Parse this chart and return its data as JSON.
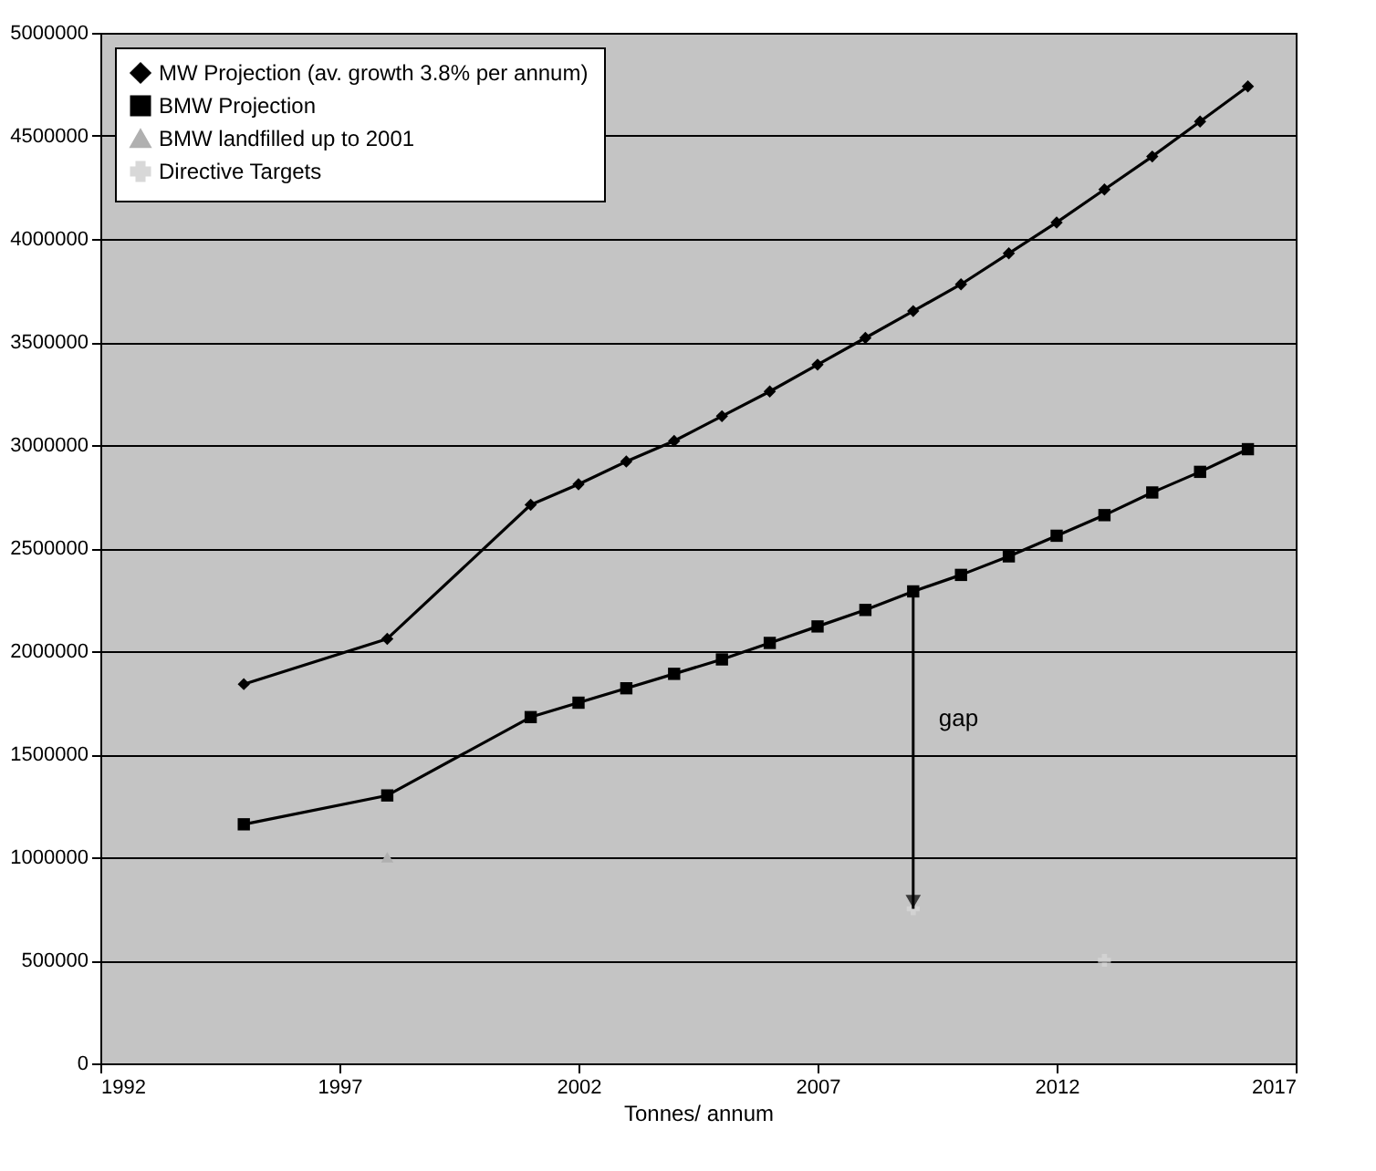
{
  "chart_data": {
    "type": "line",
    "xlabel": "Tonnes/ annum",
    "xlim": [
      1992,
      2017
    ],
    "xticks": [
      1992,
      1997,
      2002,
      2007,
      2012,
      2017
    ],
    "ylim": [
      0,
      5000000
    ],
    "yticks": [
      0,
      500000,
      1000000,
      1500000,
      2000000,
      2500000,
      3000000,
      3500000,
      4000000,
      4500000,
      5000000
    ],
    "grid": "y",
    "legend": "top left",
    "series": [
      {
        "name": "MW Projection (av. growth 3.8% per annum)",
        "color": "#000000",
        "marker": "diamond",
        "x": [
          1995,
          1998,
          2001,
          2002,
          2003,
          2004,
          2005,
          2006,
          2007,
          2008,
          2009,
          2010,
          2011,
          2012,
          2013,
          2014,
          2015,
          2016
        ],
        "values": [
          1840000,
          2060000,
          2710000,
          2810000,
          2920000,
          3020000,
          3140000,
          3260000,
          3390000,
          3520000,
          3650000,
          3780000,
          3930000,
          4080000,
          4240000,
          4400000,
          4570000,
          4740000
        ]
      },
      {
        "name": "BMW Projection",
        "color": "#000000",
        "marker": "square",
        "x": [
          1995,
          1998,
          2001,
          2002,
          2003,
          2004,
          2005,
          2006,
          2007,
          2008,
          2009,
          2010,
          2011,
          2012,
          2013,
          2014,
          2015,
          2016
        ],
        "values": [
          1160000,
          1300000,
          1680000,
          1750000,
          1820000,
          1890000,
          1960000,
          2040000,
          2120000,
          2200000,
          2290000,
          2370000,
          2460000,
          2560000,
          2660000,
          2770000,
          2870000,
          2980000
        ]
      },
      {
        "name": "BMW landfilled up to 2001",
        "color": "#b0b0b0",
        "marker": "triangle",
        "x": [
          1998
        ],
        "values": [
          1000000
        ]
      },
      {
        "name": "Directive Targets",
        "type": "scatter",
        "color": "#d8d8d8",
        "marker": "cross",
        "x": [
          2009,
          2013
        ],
        "values": [
          750000,
          500000
        ]
      }
    ],
    "annotations": [
      "gap"
    ]
  }
}
